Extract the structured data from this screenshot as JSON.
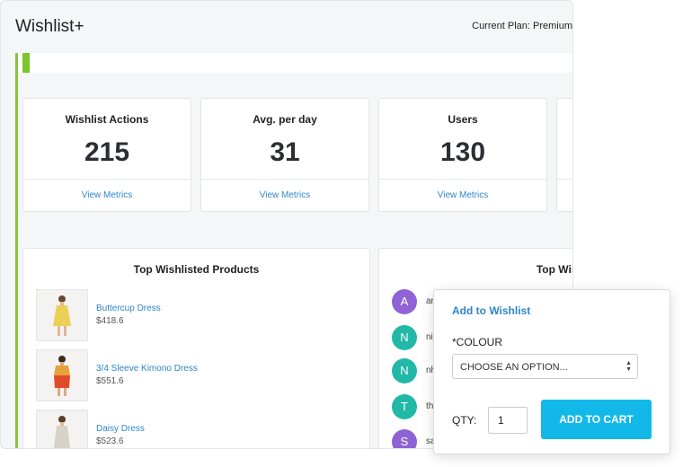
{
  "app": {
    "title": "Wishlist+",
    "plan_label": "Current Plan: Premium"
  },
  "colors": {
    "accent": "#8ac43f",
    "link": "#2e86c9",
    "button": "#12b9e8"
  },
  "stats": [
    {
      "label": "Wishlist Actions",
      "value": "215",
      "link": "View Metrics"
    },
    {
      "label": "Avg. per day",
      "value": "31",
      "link": "View Metrics"
    },
    {
      "label": "Users",
      "value": "130",
      "link": "View Metrics"
    }
  ],
  "top_products": {
    "title": "Top Wishlisted Products",
    "items": [
      {
        "name": "Buttercup Dress",
        "price": "$418.6"
      },
      {
        "name": "3/4 Sleeve Kimono Dress",
        "price": "$551.6"
      },
      {
        "name": "Daisy Dress",
        "price": "$523.6"
      }
    ]
  },
  "top_users": {
    "title": "Top Wishlist U",
    "items": [
      {
        "initial": "A",
        "name": "ar",
        "color": "#8f63d6"
      },
      {
        "initial": "N",
        "name": "ni",
        "color": "#22b8a8"
      },
      {
        "initial": "N",
        "name": "nh",
        "color": "#22b8a8"
      },
      {
        "initial": "T",
        "name": "th",
        "color": "#22b8a8"
      },
      {
        "initial": "S",
        "name": "sa",
        "color": "#8f63d6"
      }
    ]
  },
  "popup": {
    "title": "Add to Wishlist",
    "colour_label": "*COLOUR",
    "select_value": "CHOOSE AN OPTION...",
    "qty_label": "QTY:",
    "qty_value": "1",
    "button_label": "ADD TO CART"
  }
}
